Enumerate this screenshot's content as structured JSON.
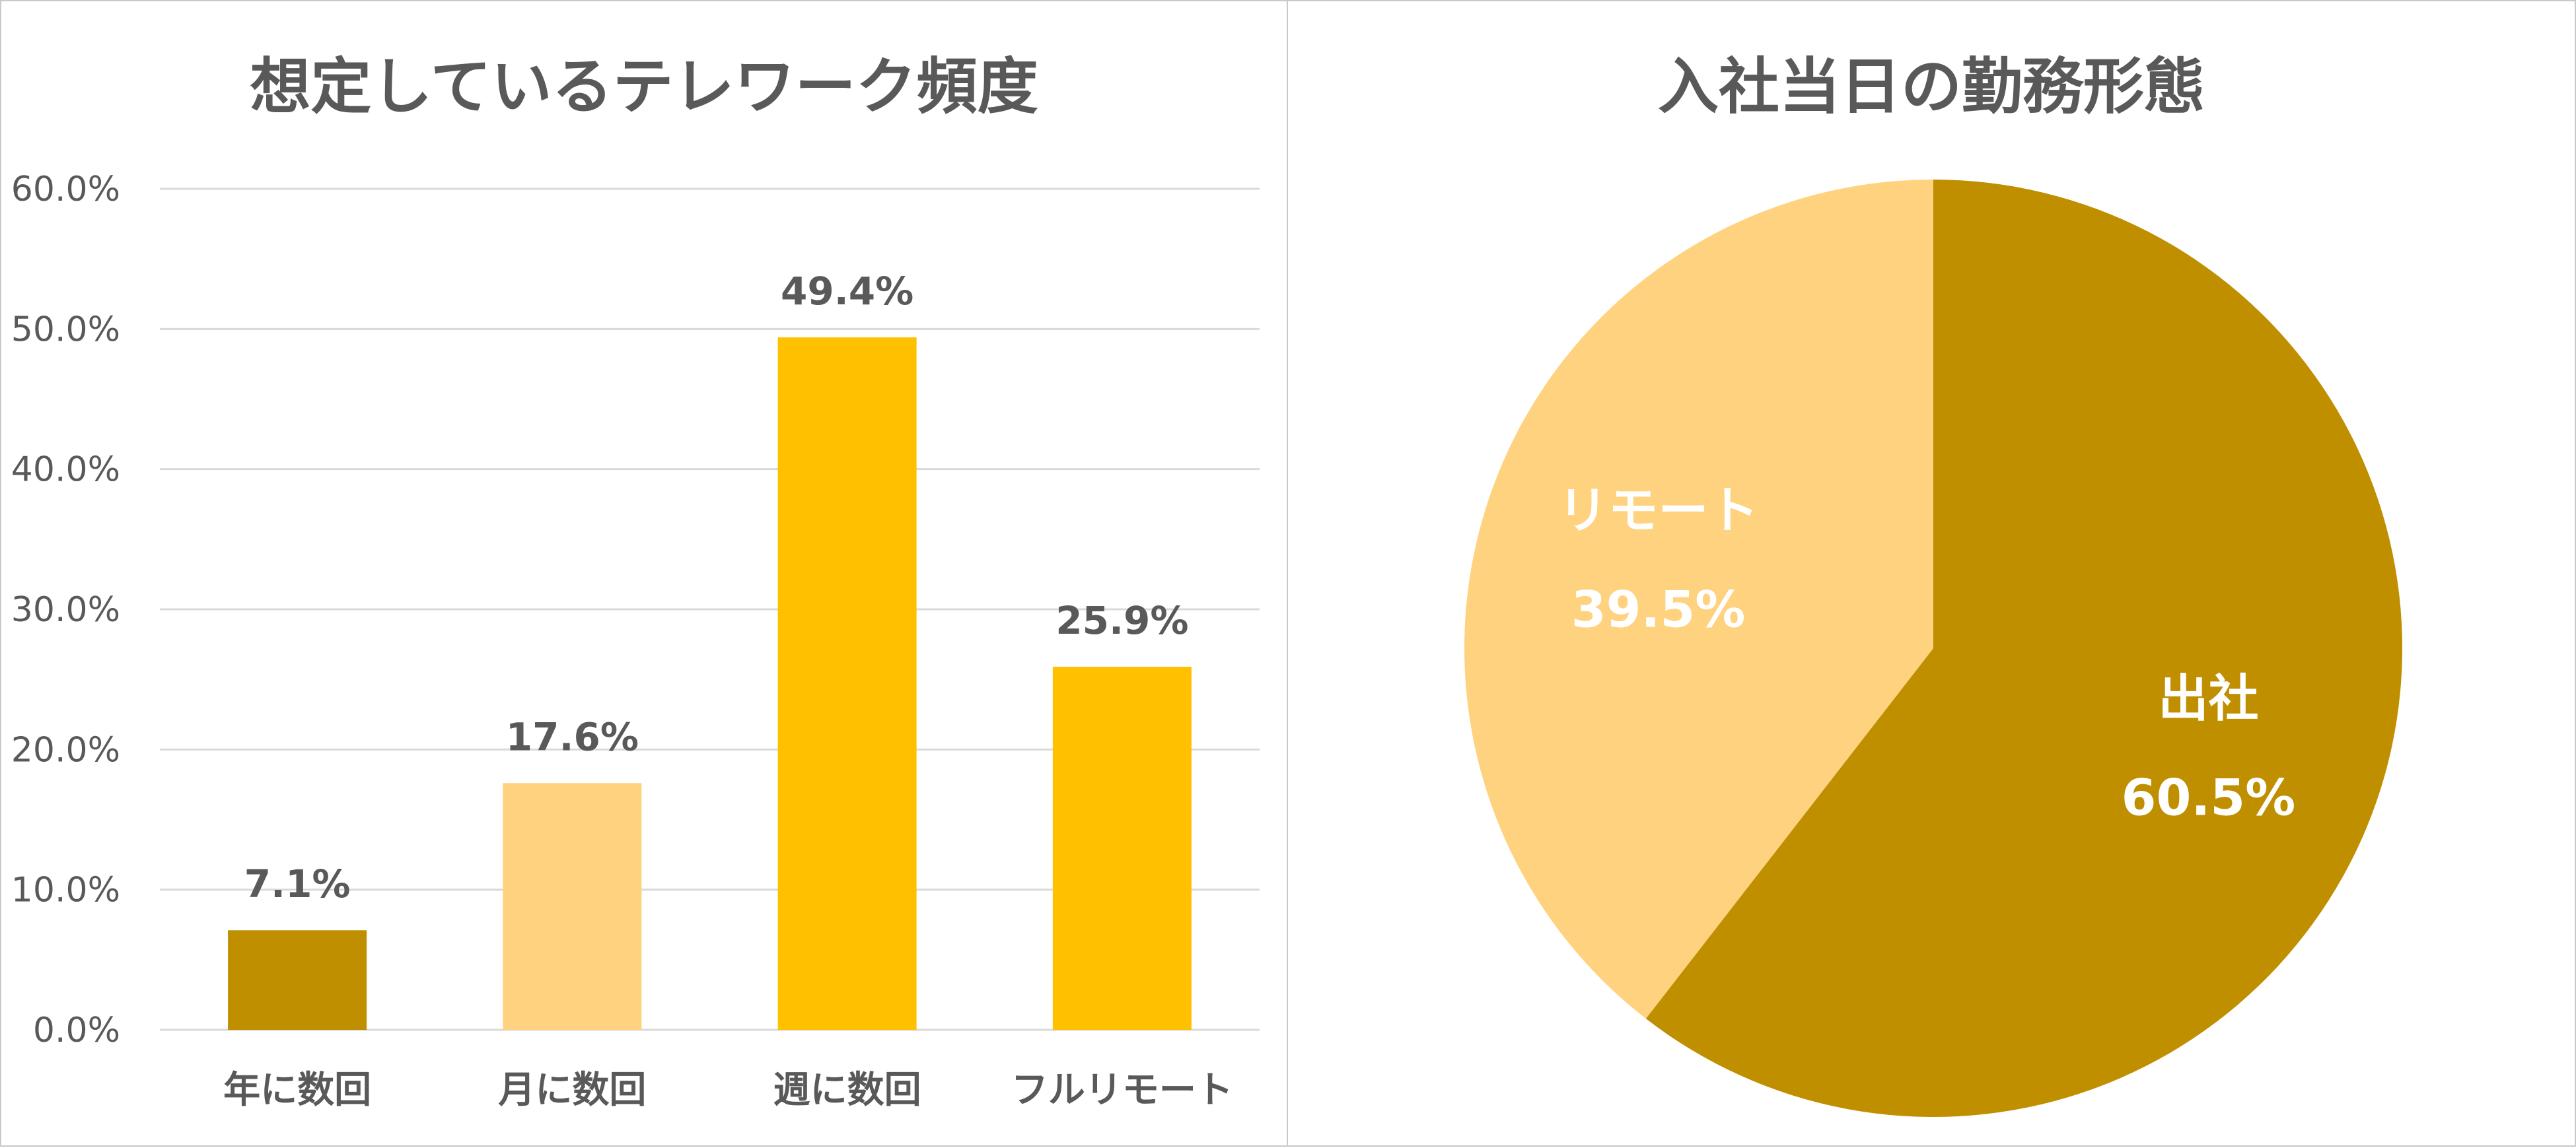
{
  "charts": [
    {
      "type": "bar",
      "title": "想定しているテレワーク頻度",
      "categories": [
        "年に数回",
        "月に数回",
        "週に数回",
        "フルリモート"
      ],
      "values": [
        7.1,
        17.6,
        49.4,
        25.9
      ],
      "data_labels": [
        "7.1%",
        "17.6%",
        "49.4%",
        "25.9%"
      ],
      "ylim": [
        0,
        60
      ],
      "ytick_labels": [
        "0.0%",
        "10.0%",
        "20.0%",
        "30.0%",
        "40.0%",
        "50.0%",
        "60.0%"
      ],
      "bar_colors": [
        "#BF8F00",
        "#FFD27F",
        "#FFC000",
        "#FFC000"
      ],
      "grid": true,
      "xlabel": "",
      "ylabel": ""
    },
    {
      "type": "pie",
      "title": "入社当日の勤務形態",
      "labels": [
        "出社",
        "リモート"
      ],
      "values": [
        60.5,
        39.5
      ],
      "value_labels": [
        "60.5%",
        "39.5%"
      ],
      "colors": [
        "#BF8F00",
        "#FFD27F"
      ],
      "label_color": "#FFFFFF"
    }
  ],
  "chart_data": [
    {
      "type": "bar",
      "title": "想定しているテレワーク頻度",
      "categories": [
        "年に数回",
        "月に数回",
        "週に数回",
        "フルリモート"
      ],
      "values": [
        7.1,
        17.6,
        49.4,
        25.9
      ],
      "xlabel": "",
      "ylabel": "",
      "ylim": [
        0,
        60
      ],
      "grid": true,
      "legend": "none"
    },
    {
      "type": "pie",
      "title": "入社当日の勤務形態",
      "labels": [
        "出社",
        "リモート"
      ],
      "values": [
        60.5,
        39.5
      ],
      "legend": "none"
    }
  ],
  "styles": {
    "text_color": "#595959",
    "grid_color": "#D9D9D9",
    "panel_border": "#C9C9C9"
  }
}
